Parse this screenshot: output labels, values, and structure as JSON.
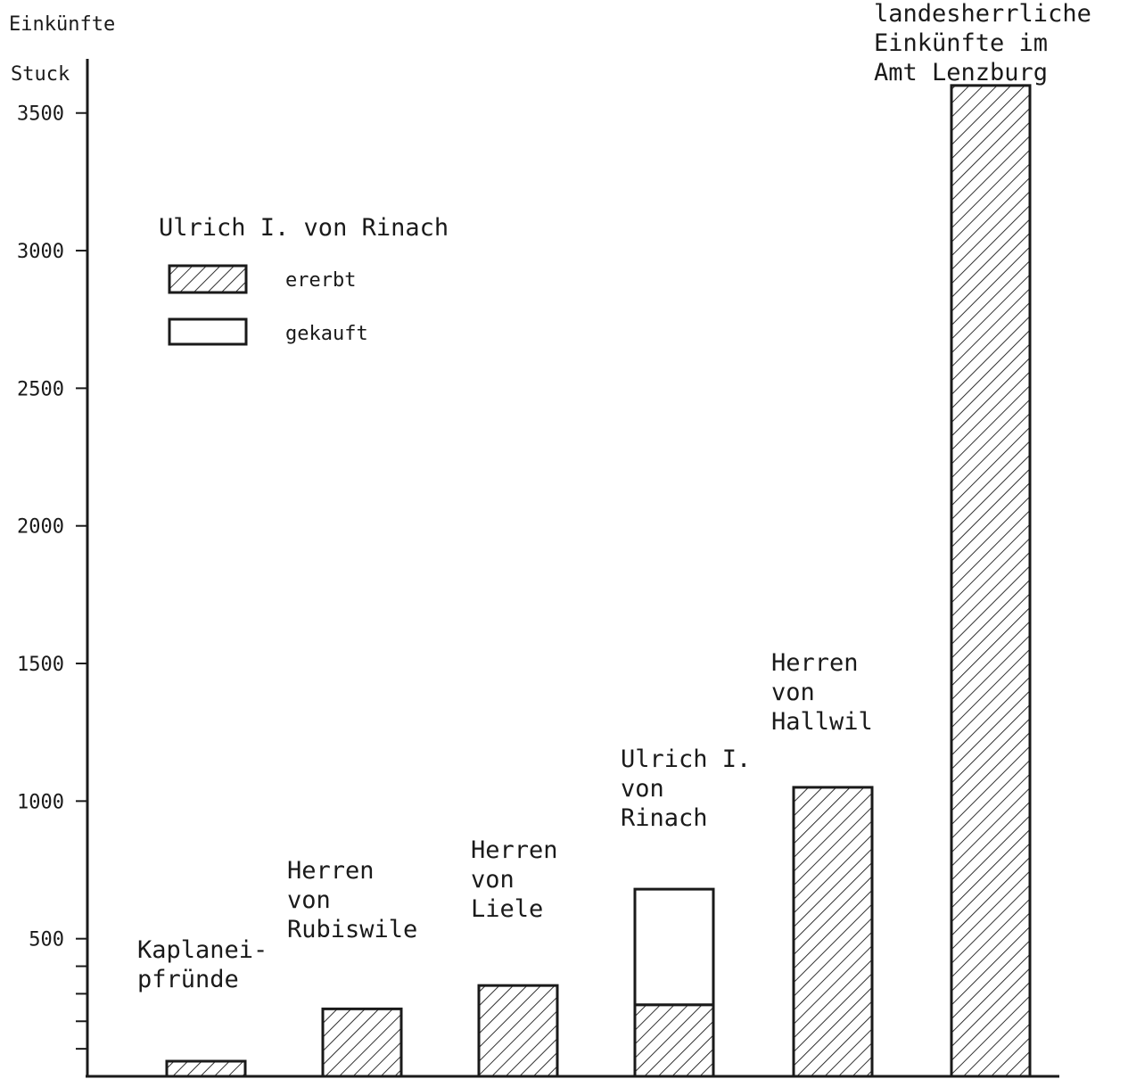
{
  "chart_data": {
    "type": "bar",
    "stacked": true,
    "yaxis_title": "Einkünfte",
    "ylabel": "Stuck",
    "yticks": [
      500,
      1000,
      1500,
      2000,
      2500,
      3000,
      3500
    ],
    "ylim": [
      0,
      3700
    ],
    "legend": {
      "title": "Ulrich I. von Rinach",
      "entries": [
        {
          "label": "ererbt",
          "pattern": "hatched"
        },
        {
          "label": "gekauft",
          "pattern": "empty"
        }
      ],
      "placement": "top-left"
    },
    "categories": [
      {
        "lines": [
          "Kaplanei-",
          "pfründe"
        ]
      },
      {
        "lines": [
          "Herren",
          "von",
          "Rubiswile"
        ]
      },
      {
        "lines": [
          "Herren",
          "von",
          "Liele"
        ]
      },
      {
        "lines": [
          "Ulrich I.",
          "von",
          "Rinach"
        ]
      },
      {
        "lines": [
          "Herren",
          "von",
          "Hallwil"
        ]
      },
      {
        "lines": [
          "landesherrliche",
          "Einkünfte im",
          "Amt Lenzburg"
        ]
      }
    ],
    "series": [
      {
        "name": "ererbt",
        "values": [
          55,
          245,
          330,
          260,
          1050,
          3600
        ]
      },
      {
        "name": "gekauft",
        "values": [
          0,
          0,
          0,
          420,
          0,
          0
        ]
      }
    ],
    "colors": {
      "ink": "#1a1a1a",
      "background": "#ffffff"
    }
  }
}
